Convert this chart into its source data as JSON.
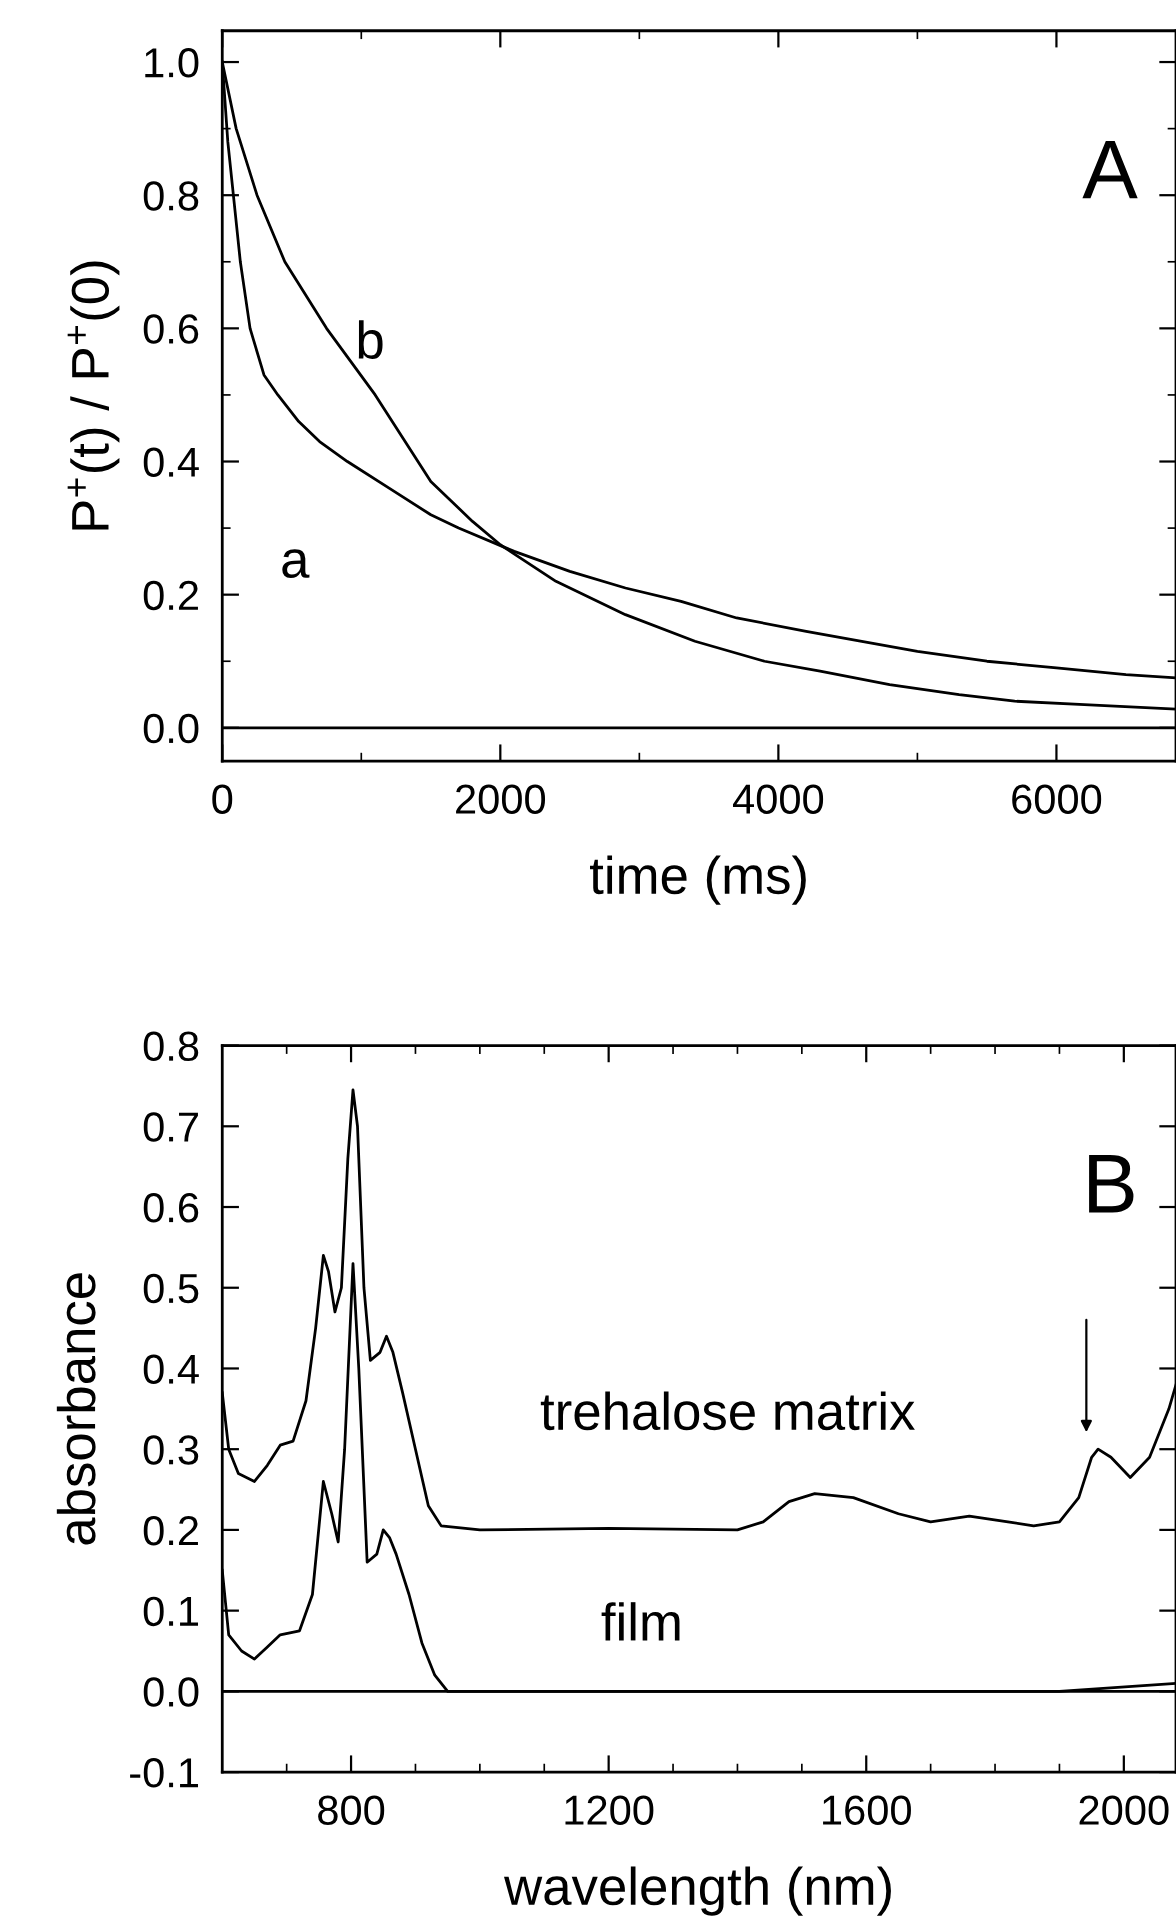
{
  "chart_data": [
    {
      "type": "line",
      "xlabel": "time (ms)",
      "ylabel": "P$^{+}$(t) / P$^{+}$(0)",
      "xlim": [
        0,
        6860
      ],
      "ylim": [
        -0.05,
        1.047
      ],
      "xticks": [
        0,
        {
          "value": 1000,
          "label": null
        },
        2000,
        {
          "value": 3000,
          "label": null
        },
        4000,
        {
          "value": 5000,
          "label": null
        },
        6000
      ],
      "yticks": [
        {
          "value": 0,
          "label": "0.0"
        },
        {
          "value": 0.1,
          "label": null
        },
        {
          "value": 0.2,
          "label": "0.2"
        },
        {
          "value": 0.3,
          "label": null
        },
        {
          "value": 0.4,
          "label": "0.4"
        },
        {
          "value": 0.5,
          "label": null
        },
        {
          "value": 0.6,
          "label": "0.6"
        },
        {
          "value": 0.7,
          "label": null
        },
        {
          "value": 0.8,
          "label": "0.8"
        },
        {
          "value": 0.9,
          "label": null
        },
        {
          "value": 1.0,
          "label": "1.0"
        }
      ],
      "grid": false,
      "legend": false,
      "series": [
        {
          "color": "#000000",
          "x": [
            0,
            40,
            80,
            130,
            200,
            300,
            400,
            550,
            700,
            900,
            1200,
            1500,
            1700,
            2100,
            2500,
            2900,
            3300,
            3700,
            4200,
            4600,
            5000,
            5500,
            6000,
            6500,
            6860
          ],
          "values": [
            1.0,
            0.88,
            0.8,
            0.7,
            0.6,
            0.53,
            0.5,
            0.46,
            0.43,
            0.4,
            0.36,
            0.32,
            0.3,
            0.265,
            0.235,
            0.21,
            0.19,
            0.165,
            0.145,
            0.13,
            0.115,
            0.1,
            0.09,
            0.08,
            0.075
          ]
        },
        {
          "color": "#000000",
          "x": [
            0,
            100,
            250,
            450,
            750,
            1100,
            1500,
            1800,
            2000,
            2400,
            2900,
            3400,
            3900,
            4300,
            4800,
            5300,
            5700,
            6200,
            6860
          ],
          "values": [
            1.0,
            0.9,
            0.8,
            0.7,
            0.6,
            0.5,
            0.37,
            0.31,
            0.275,
            0.22,
            0.17,
            0.13,
            0.1,
            0.085,
            0.065,
            0.05,
            0.04,
            0.035,
            0.028
          ]
        }
      ],
      "ref_lines": [
        {
          "axis": "y",
          "value": 0,
          "color": "#000000"
        }
      ],
      "annotations": [
        "A",
        "a",
        "b"
      ]
    },
    {
      "type": "line",
      "xlabel": "wavelength (nm)",
      "ylabel": "absorbance",
      "xlim": [
        600,
        2081
      ],
      "ylim": [
        -0.1,
        0.8
      ],
      "xticks": [
        {
          "value": 700,
          "label": null
        },
        800,
        {
          "value": 900,
          "label": null
        },
        {
          "value": 1000,
          "label": null
        },
        {
          "value": 1100,
          "label": null
        },
        1200,
        {
          "value": 1300,
          "label": null
        },
        {
          "value": 1400,
          "label": null
        },
        {
          "value": 1500,
          "label": null
        },
        1600,
        {
          "value": 1700,
          "label": null
        },
        {
          "value": 1800,
          "label": null
        },
        {
          "value": 1900,
          "label": null
        },
        2000
      ],
      "yticks": [
        -0.1,
        {
          "value": 0,
          "label": "0.0"
        },
        0.1,
        0.2,
        0.3,
        0.4,
        0.5,
        0.6,
        0.7,
        0.8
      ],
      "grid": false,
      "legend": false,
      "series": [
        {
          "color": "#000000",
          "x": [
            600,
            610,
            625,
            650,
            670,
            690,
            710,
            730,
            745,
            757,
            765,
            775,
            785,
            795,
            803,
            810,
            820,
            830,
            845,
            855,
            865,
            880,
            900,
            920,
            940,
            1000,
            1200,
            1400,
            1440,
            1480,
            1520,
            1580,
            1650,
            1700,
            1760,
            1820,
            1860,
            1900,
            1930,
            1950,
            1960,
            1980,
            2010,
            2040,
            2070,
            2081
          ],
          "values": [
            0.37,
            0.3,
            0.27,
            0.26,
            0.28,
            0.305,
            0.31,
            0.36,
            0.45,
            0.54,
            0.52,
            0.47,
            0.5,
            0.66,
            0.745,
            0.7,
            0.5,
            0.41,
            0.42,
            0.44,
            0.42,
            0.37,
            0.3,
            0.23,
            0.205,
            0.2,
            0.202,
            0.2,
            0.21,
            0.235,
            0.245,
            0.24,
            0.22,
            0.21,
            0.217,
            0.21,
            0.205,
            0.21,
            0.24,
            0.29,
            0.3,
            0.29,
            0.265,
            0.29,
            0.35,
            0.38
          ]
        },
        {
          "color": "#000000",
          "x": [
            600,
            610,
            630,
            650,
            670,
            690,
            720,
            740,
            757,
            770,
            780,
            790,
            803,
            812,
            825,
            840,
            850,
            860,
            870,
            890,
            910,
            930,
            950,
            1100,
            1500,
            1900,
            2081
          ],
          "values": [
            0.15,
            0.07,
            0.05,
            0.04,
            0.055,
            0.07,
            0.075,
            0.12,
            0.26,
            0.22,
            0.185,
            0.3,
            0.53,
            0.4,
            0.16,
            0.17,
            0.2,
            0.19,
            0.17,
            0.12,
            0.06,
            0.02,
            0.0,
            0.0,
            0.0,
            0.0,
            0.01
          ]
        }
      ],
      "ref_lines": [
        {
          "axis": "y",
          "value": 0,
          "color": "#000000"
        }
      ],
      "annotations": [
        "B",
        "trehalose matrix",
        "film"
      ]
    }
  ]
}
